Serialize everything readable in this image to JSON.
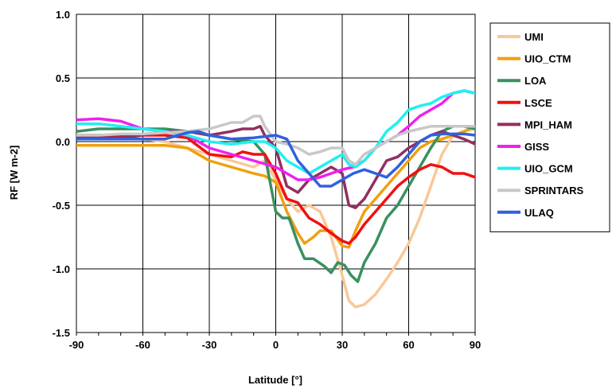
{
  "chart_data": {
    "type": "line",
    "xlabel": "Latitude [°]",
    "ylabel": "RF [W m-2]",
    "xlim": [
      -90,
      90
    ],
    "ylim": [
      -1.5,
      1.0
    ],
    "x_ticks": [
      -90,
      -60,
      -30,
      0,
      30,
      60,
      90
    ],
    "y_ticks": [
      -1.5,
      -1.0,
      -0.5,
      0.0,
      0.5,
      1.0
    ],
    "x_tick_labels": [
      "-90",
      "-60",
      "-30",
      "0",
      "30",
      "60",
      "90"
    ],
    "y_tick_labels": [
      "-1.5",
      "-1.0",
      "-0.5",
      "0.0",
      "0.5",
      "1.0"
    ],
    "grid": true,
    "legend_position": "right",
    "series": [
      {
        "name": "UMI",
        "color": "#f9c898",
        "points": [
          [
            -90,
            0.02
          ],
          [
            -80,
            0.03
          ],
          [
            -70,
            0.03
          ],
          [
            -60,
            0.02
          ],
          [
            -50,
            0.0
          ],
          [
            -40,
            -0.05
          ],
          [
            -30,
            -0.1
          ],
          [
            -20,
            -0.15
          ],
          [
            -10,
            -0.2
          ],
          [
            -5,
            -0.15
          ],
          [
            0,
            -0.3
          ],
          [
            5,
            -0.45
          ],
          [
            10,
            -0.55
          ],
          [
            15,
            -0.5
          ],
          [
            20,
            -0.55
          ],
          [
            25,
            -0.75
          ],
          [
            30,
            -1.05
          ],
          [
            33,
            -1.25
          ],
          [
            36,
            -1.3
          ],
          [
            40,
            -1.28
          ],
          [
            45,
            -1.2
          ],
          [
            50,
            -1.08
          ],
          [
            55,
            -0.95
          ],
          [
            60,
            -0.8
          ],
          [
            65,
            -0.6
          ],
          [
            70,
            -0.35
          ],
          [
            75,
            -0.1
          ],
          [
            80,
            0.05
          ],
          [
            85,
            0.08
          ],
          [
            90,
            0.1
          ]
        ]
      },
      {
        "name": "UIO_CTM",
        "color": "#f0a010",
        "points": [
          [
            -90,
            -0.03
          ],
          [
            -80,
            -0.03
          ],
          [
            -70,
            -0.03
          ],
          [
            -60,
            -0.03
          ],
          [
            -50,
            -0.03
          ],
          [
            -40,
            -0.05
          ],
          [
            -30,
            -0.15
          ],
          [
            -20,
            -0.2
          ],
          [
            -10,
            -0.25
          ],
          [
            -5,
            -0.27
          ],
          [
            0,
            -0.32
          ],
          [
            5,
            -0.55
          ],
          [
            10,
            -0.72
          ],
          [
            13,
            -0.8
          ],
          [
            17,
            -0.75
          ],
          [
            20,
            -0.7
          ],
          [
            25,
            -0.7
          ],
          [
            30,
            -0.82
          ],
          [
            33,
            -0.83
          ],
          [
            36,
            -0.7
          ],
          [
            40,
            -0.55
          ],
          [
            45,
            -0.45
          ],
          [
            50,
            -0.35
          ],
          [
            55,
            -0.25
          ],
          [
            60,
            -0.15
          ],
          [
            65,
            -0.05
          ],
          [
            70,
            0.0
          ],
          [
            75,
            0.02
          ],
          [
            80,
            0.05
          ],
          [
            85,
            0.08
          ],
          [
            90,
            0.12
          ]
        ]
      },
      {
        "name": "LOA",
        "color": "#3a9060",
        "points": [
          [
            -90,
            0.08
          ],
          [
            -80,
            0.1
          ],
          [
            -70,
            0.1
          ],
          [
            -60,
            0.1
          ],
          [
            -50,
            0.1
          ],
          [
            -40,
            0.08
          ],
          [
            -30,
            0.05
          ],
          [
            -20,
            0.02
          ],
          [
            -10,
            0.0
          ],
          [
            -5,
            -0.1
          ],
          [
            0,
            -0.55
          ],
          [
            3,
            -0.6
          ],
          [
            6,
            -0.6
          ],
          [
            10,
            -0.8
          ],
          [
            13,
            -0.92
          ],
          [
            17,
            -0.92
          ],
          [
            22,
            -0.98
          ],
          [
            25,
            -1.03
          ],
          [
            28,
            -0.95
          ],
          [
            31,
            -0.97
          ],
          [
            34,
            -1.05
          ],
          [
            37,
            -1.1
          ],
          [
            40,
            -0.95
          ],
          [
            45,
            -0.8
          ],
          [
            50,
            -0.6
          ],
          [
            55,
            -0.5
          ],
          [
            60,
            -0.35
          ],
          [
            65,
            -0.2
          ],
          [
            70,
            -0.05
          ],
          [
            75,
            0.08
          ],
          [
            80,
            0.12
          ],
          [
            85,
            0.12
          ],
          [
            90,
            0.1
          ]
        ]
      },
      {
        "name": "LSCE",
        "color": "#f01010",
        "points": [
          [
            -90,
            0.05
          ],
          [
            -80,
            0.05
          ],
          [
            -70,
            0.05
          ],
          [
            -60,
            0.05
          ],
          [
            -50,
            0.05
          ],
          [
            -40,
            0.03
          ],
          [
            -30,
            -0.1
          ],
          [
            -20,
            -0.12
          ],
          [
            -15,
            -0.08
          ],
          [
            -10,
            -0.1
          ],
          [
            -5,
            -0.1
          ],
          [
            0,
            -0.25
          ],
          [
            5,
            -0.45
          ],
          [
            10,
            -0.48
          ],
          [
            15,
            -0.6
          ],
          [
            20,
            -0.65
          ],
          [
            25,
            -0.72
          ],
          [
            30,
            -0.78
          ],
          [
            33,
            -0.8
          ],
          [
            36,
            -0.75
          ],
          [
            40,
            -0.65
          ],
          [
            45,
            -0.55
          ],
          [
            50,
            -0.45
          ],
          [
            55,
            -0.35
          ],
          [
            60,
            -0.28
          ],
          [
            65,
            -0.22
          ],
          [
            70,
            -0.18
          ],
          [
            75,
            -0.2
          ],
          [
            80,
            -0.25
          ],
          [
            85,
            -0.25
          ],
          [
            90,
            -0.28
          ]
        ]
      },
      {
        "name": "MPI_HAM",
        "color": "#903060",
        "points": [
          [
            -90,
            0.03
          ],
          [
            -80,
            0.03
          ],
          [
            -70,
            0.03
          ],
          [
            -60,
            0.05
          ],
          [
            -50,
            0.08
          ],
          [
            -40,
            0.08
          ],
          [
            -30,
            0.05
          ],
          [
            -20,
            0.08
          ],
          [
            -15,
            0.1
          ],
          [
            -10,
            0.1
          ],
          [
            -7,
            0.12
          ],
          [
            -5,
            0.05
          ],
          [
            0,
            -0.05
          ],
          [
            5,
            -0.35
          ],
          [
            10,
            -0.4
          ],
          [
            15,
            -0.3
          ],
          [
            20,
            -0.25
          ],
          [
            25,
            -0.2
          ],
          [
            30,
            -0.25
          ],
          [
            33,
            -0.5
          ],
          [
            36,
            -0.52
          ],
          [
            40,
            -0.45
          ],
          [
            45,
            -0.3
          ],
          [
            50,
            -0.15
          ],
          [
            55,
            -0.12
          ],
          [
            60,
            -0.05
          ],
          [
            65,
            0.0
          ],
          [
            70,
            0.05
          ],
          [
            75,
            0.08
          ],
          [
            80,
            0.05
          ],
          [
            85,
            0.02
          ],
          [
            90,
            -0.02
          ]
        ]
      },
      {
        "name": "GISS",
        "color": "#f020f0",
        "points": [
          [
            -90,
            0.17
          ],
          [
            -80,
            0.18
          ],
          [
            -70,
            0.16
          ],
          [
            -60,
            0.1
          ],
          [
            -50,
            0.08
          ],
          [
            -40,
            0.05
          ],
          [
            -30,
            -0.05
          ],
          [
            -20,
            -0.1
          ],
          [
            -10,
            -0.15
          ],
          [
            0,
            -0.2
          ],
          [
            5,
            -0.25
          ],
          [
            10,
            -0.3
          ],
          [
            15,
            -0.3
          ],
          [
            20,
            -0.28
          ],
          [
            25,
            -0.25
          ],
          [
            30,
            -0.22
          ],
          [
            35,
            -0.2
          ],
          [
            40,
            -0.15
          ],
          [
            45,
            -0.05
          ],
          [
            50,
            0.0
          ],
          [
            55,
            0.05
          ],
          [
            60,
            0.12
          ],
          [
            65,
            0.2
          ],
          [
            70,
            0.25
          ],
          [
            75,
            0.3
          ],
          [
            80,
            0.38
          ],
          [
            85,
            0.4
          ],
          [
            90,
            0.38
          ]
        ]
      },
      {
        "name": "UIO_GCM",
        "color": "#20f0f0",
        "points": [
          [
            -90,
            0.14
          ],
          [
            -80,
            0.14
          ],
          [
            -70,
            0.12
          ],
          [
            -60,
            0.1
          ],
          [
            -50,
            0.08
          ],
          [
            -40,
            0.05
          ],
          [
            -30,
            0.0
          ],
          [
            -20,
            -0.02
          ],
          [
            -10,
            0.0
          ],
          [
            -5,
            0.0
          ],
          [
            0,
            -0.05
          ],
          [
            5,
            -0.15
          ],
          [
            10,
            -0.2
          ],
          [
            15,
            -0.25
          ],
          [
            20,
            -0.2
          ],
          [
            25,
            -0.15
          ],
          [
            30,
            -0.1
          ],
          [
            33,
            -0.18
          ],
          [
            36,
            -0.2
          ],
          [
            40,
            -0.15
          ],
          [
            45,
            -0.05
          ],
          [
            50,
            0.08
          ],
          [
            55,
            0.15
          ],
          [
            60,
            0.25
          ],
          [
            65,
            0.28
          ],
          [
            70,
            0.3
          ],
          [
            75,
            0.35
          ],
          [
            80,
            0.38
          ],
          [
            85,
            0.4
          ],
          [
            90,
            0.38
          ]
        ]
      },
      {
        "name": "SPRINTARS",
        "color": "#c8c8c8",
        "points": [
          [
            -90,
            0.05
          ],
          [
            -80,
            0.05
          ],
          [
            -70,
            0.06
          ],
          [
            -60,
            0.06
          ],
          [
            -50,
            0.07
          ],
          [
            -40,
            0.08
          ],
          [
            -30,
            0.1
          ],
          [
            -20,
            0.15
          ],
          [
            -15,
            0.15
          ],
          [
            -10,
            0.2
          ],
          [
            -7,
            0.2
          ],
          [
            -5,
            0.12
          ],
          [
            0,
            0.0
          ],
          [
            5,
            -0.02
          ],
          [
            10,
            -0.05
          ],
          [
            15,
            -0.1
          ],
          [
            20,
            -0.08
          ],
          [
            25,
            -0.05
          ],
          [
            30,
            -0.05
          ],
          [
            33,
            -0.15
          ],
          [
            36,
            -0.18
          ],
          [
            40,
            -0.1
          ],
          [
            45,
            -0.05
          ],
          [
            50,
            0.0
          ],
          [
            55,
            0.05
          ],
          [
            60,
            0.08
          ],
          [
            65,
            0.1
          ],
          [
            70,
            0.12
          ],
          [
            75,
            0.12
          ],
          [
            80,
            0.12
          ],
          [
            85,
            0.12
          ],
          [
            90,
            0.12
          ]
        ]
      },
      {
        "name": "ULAQ",
        "color": "#3060e0",
        "points": [
          [
            -90,
            0.02
          ],
          [
            -80,
            0.02
          ],
          [
            -70,
            0.02
          ],
          [
            -60,
            0.02
          ],
          [
            -50,
            0.02
          ],
          [
            -40,
            0.07
          ],
          [
            -35,
            0.08
          ],
          [
            -30,
            0.05
          ],
          [
            -20,
            0.02
          ],
          [
            -10,
            0.03
          ],
          [
            0,
            0.05
          ],
          [
            5,
            0.02
          ],
          [
            10,
            -0.15
          ],
          [
            15,
            -0.25
          ],
          [
            20,
            -0.35
          ],
          [
            25,
            -0.35
          ],
          [
            30,
            -0.3
          ],
          [
            35,
            -0.25
          ],
          [
            40,
            -0.22
          ],
          [
            45,
            -0.25
          ],
          [
            50,
            -0.28
          ],
          [
            55,
            -0.2
          ],
          [
            60,
            -0.1
          ],
          [
            65,
            0.0
          ],
          [
            70,
            0.05
          ],
          [
            75,
            0.06
          ],
          [
            80,
            0.06
          ],
          [
            85,
            0.06
          ],
          [
            90,
            0.05
          ]
        ]
      }
    ]
  }
}
